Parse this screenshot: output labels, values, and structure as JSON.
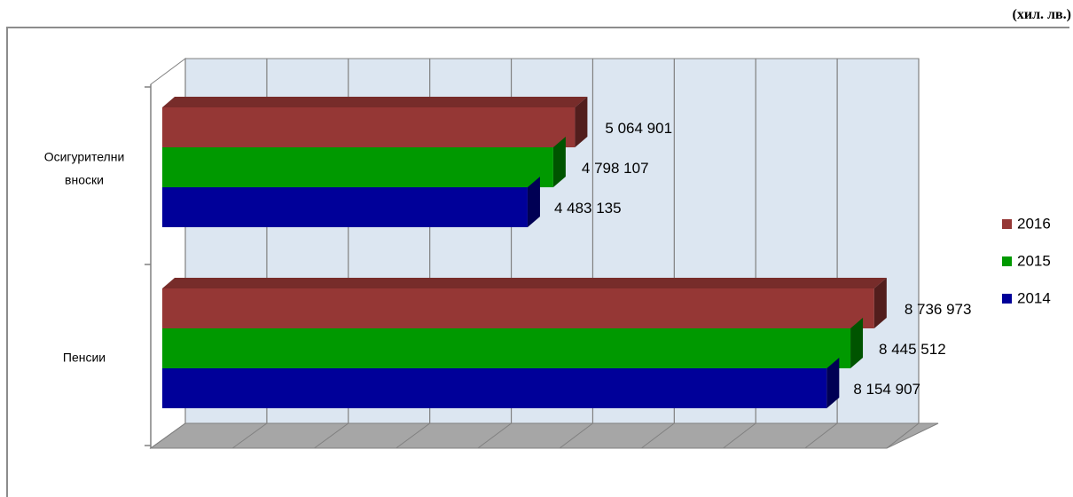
{
  "unit_label": "(хил. лв.)",
  "chart_data": {
    "type": "bar",
    "orientation": "horizontal",
    "three_d": true,
    "unit": "(хил. лв.)",
    "categories": [
      "Осигурителни вноски",
      "Пенсии"
    ],
    "category_lines": [
      [
        "Осигурителни",
        "вноски"
      ],
      [
        "Пенсии"
      ]
    ],
    "series": [
      {
        "name": "2016",
        "color": "#953735",
        "values": [
          5064901,
          8736973
        ],
        "labels": [
          "5 064 901",
          "8 736 973"
        ]
      },
      {
        "name": "2015",
        "color": "#009900",
        "values": [
          4798107,
          8445512
        ],
        "labels": [
          "4 798 107",
          "8 445 512"
        ]
      },
      {
        "name": "2014",
        "color": "#000099",
        "values": [
          4483135,
          8154907
        ],
        "labels": [
          "4 483 135",
          "8 154 907"
        ]
      }
    ],
    "xlim": [
      0,
      9000000
    ],
    "grid": true,
    "legend": "right",
    "wall_color": "#dce6f1",
    "floor_color": "#a6a6a6"
  }
}
